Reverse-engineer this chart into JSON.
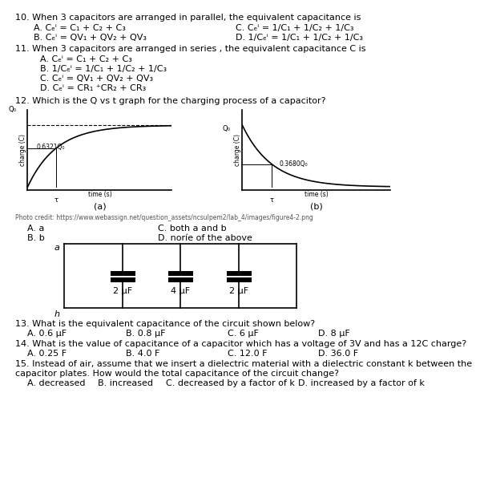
{
  "bg_color": "#ffffff",
  "q10_line": "10. When 3 capacitors are arranged in parallel, the equivalent capacitance is",
  "q10_A": "A. Cₑⁱ = C₁ + C₂ + C₃",
  "q10_B": "B. Cₑⁱ = QV₁ + QV₂ + QV₃",
  "q10_C": "C. Cₑⁱ = 1/C₁ + 1/C₂ + 1/C₃",
  "q10_D": "D. 1/Cₑⁱ = 1/C₁ + 1/C₂ + 1/C₃",
  "q11_line": "11. When 3 capacitors are arranged in series , the equivalent capacitance C is",
  "q11_A": "A. Cₑⁱ = C₁ + C₂ + C₃",
  "q11_B": "B. 1/Cₑⁱ = 1/C₁ + 1/C₂ + 1/C₃",
  "q11_C": "C. Cₑⁱ = QV₁ + QV₂ + QV₃",
  "q11_D": "D. Cₑⁱ = CR₁ ⁺CR₂ + CR₃",
  "q12_line": "12. Which is the Q vs t graph for the charging process of a capacitor?",
  "photo_credit": "Photo credit: https://www.webassign.net/question_assets/ncsulpem2/lab_4/images/figure4-2.png",
  "q12_A": "A. a",
  "q12_B": "B. b",
  "q12_C": "C. both a and b",
  "q12_D": "D. noríe of the above",
  "circuit_labels": [
    "2 μF",
    "4 μF",
    "2 μF"
  ],
  "circuit_label_a": "a",
  "circuit_label_h": "h",
  "q13_line": "13. What is the equivalent capacitance of the circuit shown below?",
  "q13_A": "A. 0.6 μF",
  "q13_B": "B. 0.8 μF",
  "q13_C": "C. 6 μF",
  "q13_D": "D. 8 μF",
  "q14_line": "14. What is the value of capacitance of a capacitor which has a voltage of 3V and has a 12C charge?",
  "q14_A": "A. 0.25 F",
  "q14_B": "B. 4.0 F",
  "q14_C": "C. 12.0 F",
  "q14_D": "D. 36.0 F",
  "q15_line1": "15. Instead of air, assume that we insert a dielectric material with a dielectric constant k between the",
  "q15_line2": "capacitor plates. How would the total capacitance of the circuit change?",
  "q15_A": "A. decreased",
  "q15_B": "B. increased",
  "q15_C": "C. decreased by a factor of k",
  "q15_D": "D. increased by a factor of k"
}
